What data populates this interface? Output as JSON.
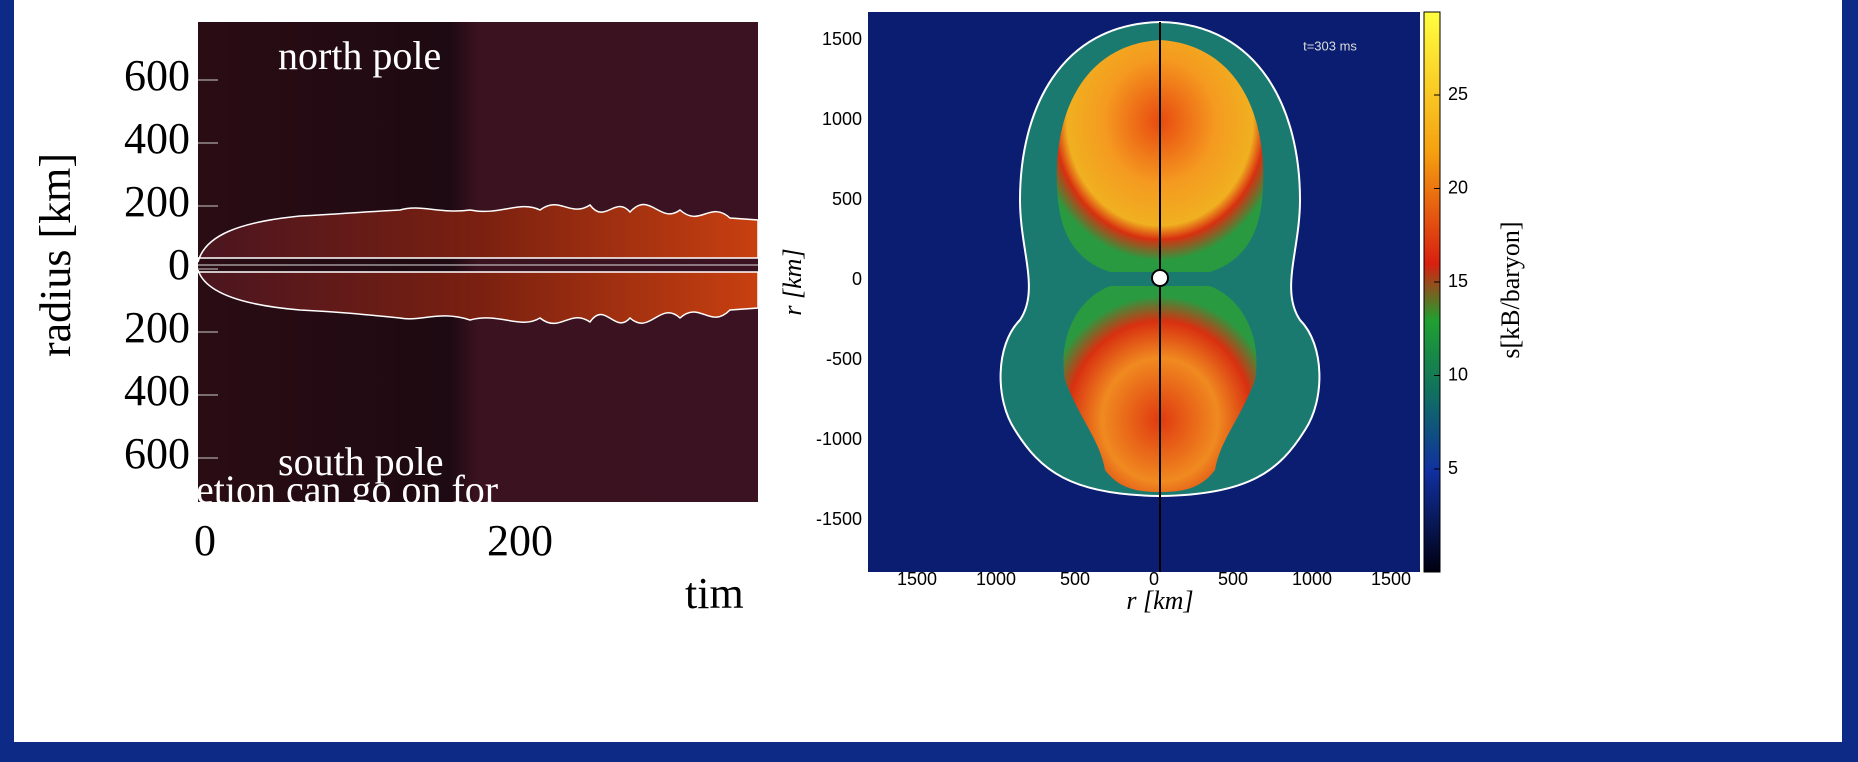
{
  "left_plot": {
    "top_label": "north pole",
    "bottom_label": "south pole",
    "overlay_text": "etion can go on for",
    "y_label": "radius [km]",
    "y_ticks": [
      600,
      400,
      200,
      0,
      200,
      400,
      600
    ],
    "x_ticks": [
      0,
      200
    ],
    "x_label": "tim"
  },
  "right_plot": {
    "time_label": "t=303 ms",
    "y_label": "r [km]",
    "x_label": "r [km]",
    "y_ticks": [
      1500,
      1000,
      500,
      0,
      -500,
      -1000,
      -1500
    ],
    "x_ticks": [
      1500,
      1000,
      500,
      0,
      500,
      1000,
      1500
    ],
    "colorbar_label": "s[kB/baryon]",
    "colorbar_ticks": [
      25,
      20,
      15,
      10,
      5
    ]
  }
}
